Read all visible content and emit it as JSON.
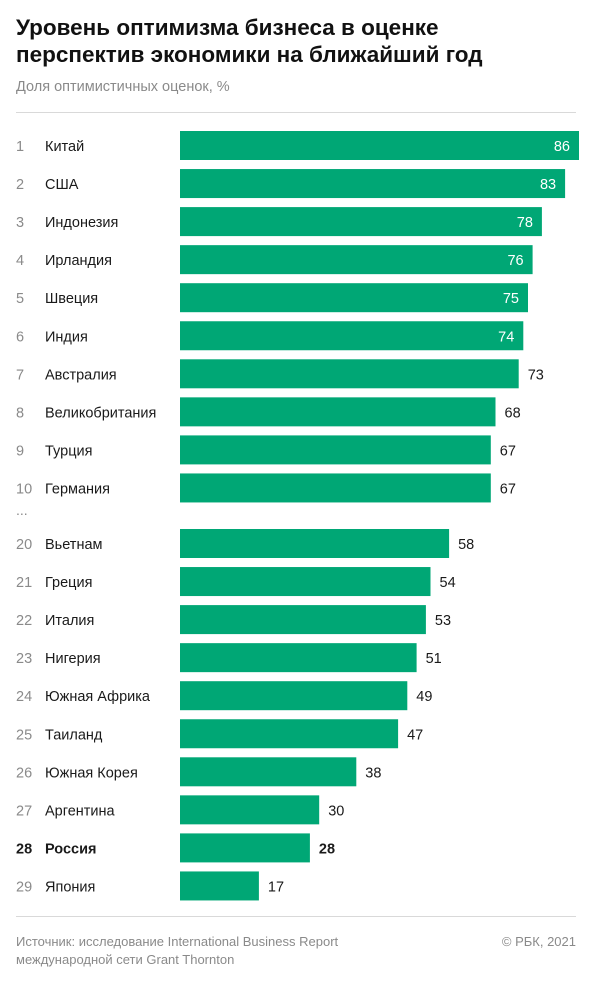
{
  "title_lines": [
    "Уровень оптимизма бизнеса в оценке",
    "перспектив экономики на ближайший год"
  ],
  "subtitle": "Доля оптимистичных оценок, %",
  "gap_marker": "...",
  "source": "Источник: исследование International Business Report международной сети Grant Thornton",
  "copyright": "© РБК, 2021",
  "colors": {
    "bar": "#00a775",
    "text": "#1a1a1a",
    "muted": "#8a8a8a",
    "label_on_bar": "#ffffff"
  },
  "chart_data": {
    "type": "bar",
    "orientation": "horizontal",
    "highlight": "Россия",
    "xlim": [
      0,
      86
    ],
    "rows": [
      {
        "rank": "1",
        "country": "Китай",
        "value": 86
      },
      {
        "rank": "2",
        "country": "США",
        "value": 83
      },
      {
        "rank": "3",
        "country": "Индонезия",
        "value": 78
      },
      {
        "rank": "4",
        "country": "Ирландия",
        "value": 76
      },
      {
        "rank": "5",
        "country": "Швеция",
        "value": 75
      },
      {
        "rank": "6",
        "country": "Индия",
        "value": 74
      },
      {
        "rank": "7",
        "country": "Австралия",
        "value": 73
      },
      {
        "rank": "8",
        "country": "Великобритания",
        "value": 68
      },
      {
        "rank": "9",
        "country": "Турция",
        "value": 67
      },
      {
        "rank": "10",
        "country": "Германия",
        "value": 67
      },
      {
        "rank": "20",
        "country": "Вьетнам",
        "value": 58
      },
      {
        "rank": "21",
        "country": "Греция",
        "value": 54
      },
      {
        "rank": "22",
        "country": "Италия",
        "value": 53
      },
      {
        "rank": "23",
        "country": "Нигерия",
        "value": 51
      },
      {
        "rank": "24",
        "country": "Южная Африка",
        "value": 49
      },
      {
        "rank": "25",
        "country": "Таиланд",
        "value": 47
      },
      {
        "rank": "26",
        "country": "Южная Корея",
        "value": 38
      },
      {
        "rank": "27",
        "country": "Аргентина",
        "value": 30
      },
      {
        "rank": "28",
        "country": "Россия",
        "value": 28
      },
      {
        "rank": "29",
        "country": "Япония",
        "value": 17
      }
    ]
  }
}
